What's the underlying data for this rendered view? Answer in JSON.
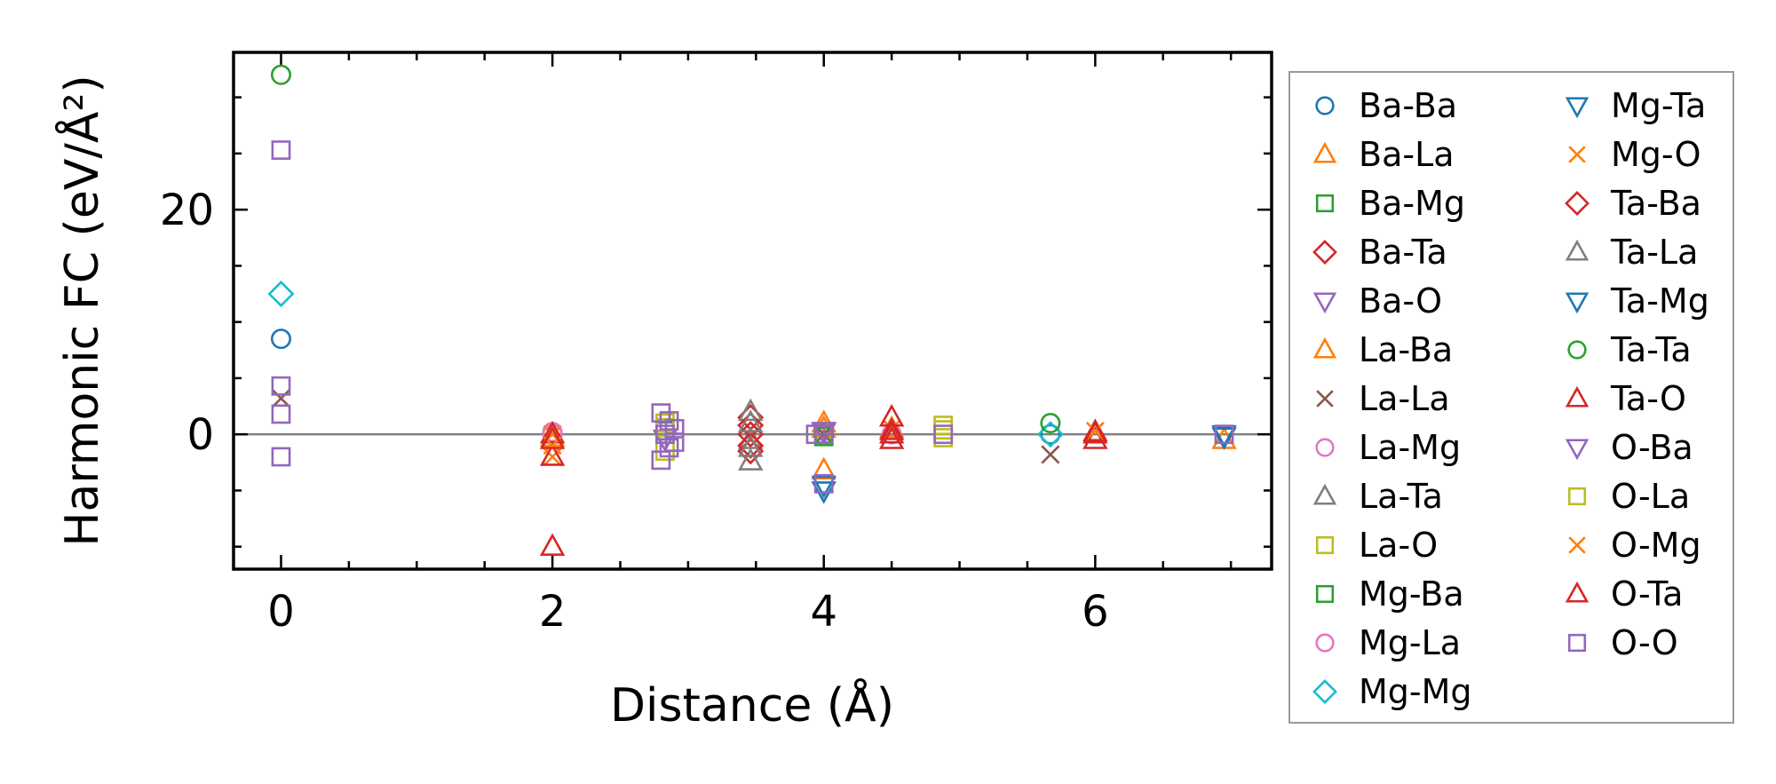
{
  "chart_data": {
    "type": "scatter",
    "title": "",
    "xlabel": "Distance (Å)",
    "ylabel": "Harmonic FC (eV/Å²)",
    "xlim": [
      -0.35,
      7.3
    ],
    "ylim": [
      -12,
      34
    ],
    "xticks": [
      0,
      2,
      4,
      6
    ],
    "yticks": [
      0,
      20
    ],
    "reference_line": {
      "y": 0,
      "color": "#808080"
    },
    "legend": {
      "placement": "right-outside",
      "columns": 2
    },
    "series": [
      {
        "name": "Ba-Ba",
        "marker": "circle",
        "color": "#1f77b4",
        "points": [
          [
            0,
            8.5
          ],
          [
            5.67,
            0.0
          ],
          [
            4.0,
            0.0
          ]
        ]
      },
      {
        "name": "Ba-La",
        "marker": "triangle-up",
        "color": "#ff7f0e",
        "points": [
          [
            4.0,
            1.0
          ],
          [
            4.0,
            -3.2
          ],
          [
            2.0,
            -0.3
          ],
          [
            6.95,
            -0.5
          ]
        ]
      },
      {
        "name": "Ba-Mg",
        "marker": "square",
        "color": "#2ca02c",
        "points": [
          [
            4.0,
            0.0
          ],
          [
            2.83,
            0.3
          ]
        ]
      },
      {
        "name": "Ba-Ta",
        "marker": "diamond",
        "color": "#d62728",
        "points": [
          [
            3.46,
            1.5
          ],
          [
            3.46,
            -1.5
          ],
          [
            3.46,
            0.0
          ]
        ]
      },
      {
        "name": "Ba-O",
        "marker": "triangle-down",
        "color": "#9467bd",
        "points": [
          [
            2.83,
            -0.4
          ],
          [
            4.0,
            0.2
          ]
        ]
      },
      {
        "name": "La-Ba",
        "marker": "triangle-up",
        "color": "#ff7f0e",
        "points": [
          [
            4.5,
            0.5
          ],
          [
            4.0,
            0.5
          ]
        ]
      },
      {
        "name": "La-La",
        "marker": "x",
        "color": "#8c564b",
        "points": [
          [
            0,
            3.2
          ],
          [
            5.67,
            -1.8
          ],
          [
            4.0,
            0.0
          ]
        ]
      },
      {
        "name": "La-Mg",
        "marker": "circle",
        "color": "#e377c2",
        "points": [
          [
            2.0,
            0.0
          ],
          [
            4.5,
            0.0
          ]
        ]
      },
      {
        "name": "La-Ta",
        "marker": "triangle-up",
        "color": "#7f7f7f",
        "points": [
          [
            3.46,
            2.0
          ],
          [
            3.46,
            -2.4
          ],
          [
            3.46,
            -0.5
          ]
        ]
      },
      {
        "name": "La-O",
        "marker": "square",
        "color": "#bcbd22",
        "points": [
          [
            2.83,
            1.0
          ],
          [
            2.83,
            -1.5
          ],
          [
            4.88,
            0.8
          ],
          [
            4.88,
            -0.3
          ]
        ]
      },
      {
        "name": "Mg-Ba",
        "marker": "square",
        "color": "#2ca02c",
        "points": [
          [
            4.0,
            -0.2
          ]
        ]
      },
      {
        "name": "Mg-La",
        "marker": "circle",
        "color": "#e377c2",
        "points": [
          [
            2.0,
            0.2
          ]
        ]
      },
      {
        "name": "Mg-Mg",
        "marker": "diamond",
        "color": "#17becf",
        "points": [
          [
            0,
            12.5
          ],
          [
            5.67,
            0.0
          ]
        ]
      },
      {
        "name": "Mg-Ta",
        "marker": "triangle-down",
        "color": "#1f77b4",
        "points": [
          [
            4.0,
            -5.0
          ],
          [
            6.95,
            -0.2
          ]
        ]
      },
      {
        "name": "Mg-O",
        "marker": "x",
        "color": "#ff7f0e",
        "points": [
          [
            2.0,
            -2.0
          ],
          [
            2.0,
            0.0
          ],
          [
            4.5,
            0.5
          ]
        ]
      },
      {
        "name": "Ta-Ba",
        "marker": "diamond",
        "color": "#d62728",
        "points": [
          [
            3.46,
            0.8
          ],
          [
            3.46,
            -1.0
          ]
        ]
      },
      {
        "name": "Ta-La",
        "marker": "triangle-up",
        "color": "#7f7f7f",
        "points": [
          [
            3.46,
            1.0
          ],
          [
            3.46,
            -1.2
          ]
        ]
      },
      {
        "name": "Ta-Mg",
        "marker": "triangle-down",
        "color": "#1f77b4",
        "points": [
          [
            4.0,
            -4.5
          ],
          [
            6.95,
            0.0
          ]
        ]
      },
      {
        "name": "Ta-Ta",
        "marker": "circle",
        "color": "#2ca02c",
        "points": [
          [
            0,
            32.0
          ],
          [
            5.67,
            1.0
          ],
          [
            4.0,
            0.0
          ]
        ]
      },
      {
        "name": "Ta-O",
        "marker": "triangle-up",
        "color": "#d62728",
        "points": [
          [
            2.0,
            -10.0
          ],
          [
            2.0,
            0.0
          ],
          [
            2.0,
            -2.0
          ],
          [
            4.5,
            1.5
          ],
          [
            4.5,
            0.0
          ],
          [
            4.5,
            -0.5
          ],
          [
            6.0,
            0.2
          ],
          [
            6.0,
            -0.5
          ]
        ]
      },
      {
        "name": "O-Ba",
        "marker": "triangle-down",
        "color": "#9467bd",
        "points": [
          [
            4.0,
            0.3
          ]
        ]
      },
      {
        "name": "O-La",
        "marker": "square",
        "color": "#bcbd22",
        "points": [
          [
            2.83,
            0.6
          ],
          [
            4.88,
            0.4
          ]
        ]
      },
      {
        "name": "O-Mg",
        "marker": "x",
        "color": "#ff7f0e",
        "points": [
          [
            2.0,
            -1.0
          ],
          [
            6.0,
            0.3
          ]
        ]
      },
      {
        "name": "O-Ta",
        "marker": "triangle-up",
        "color": "#d62728",
        "points": [
          [
            2.0,
            -0.5
          ],
          [
            4.5,
            0.3
          ],
          [
            6.0,
            0.0
          ]
        ]
      },
      {
        "name": "O-O",
        "marker": "square",
        "color": "#9467bd",
        "points": [
          [
            0,
            25.3
          ],
          [
            0,
            4.3
          ],
          [
            0,
            1.8
          ],
          [
            0,
            -2.0
          ],
          [
            2.8,
            1.9
          ],
          [
            2.8,
            -2.3
          ],
          [
            2.83,
            0.0
          ],
          [
            2.86,
            1.2
          ],
          [
            2.86,
            -1.2
          ],
          [
            2.9,
            0.5
          ],
          [
            2.9,
            -0.7
          ],
          [
            4.0,
            0.0
          ],
          [
            4.0,
            -4.4
          ],
          [
            3.94,
            0.0
          ],
          [
            4.88,
            0.0
          ],
          [
            6.95,
            0.0
          ]
        ]
      }
    ]
  }
}
